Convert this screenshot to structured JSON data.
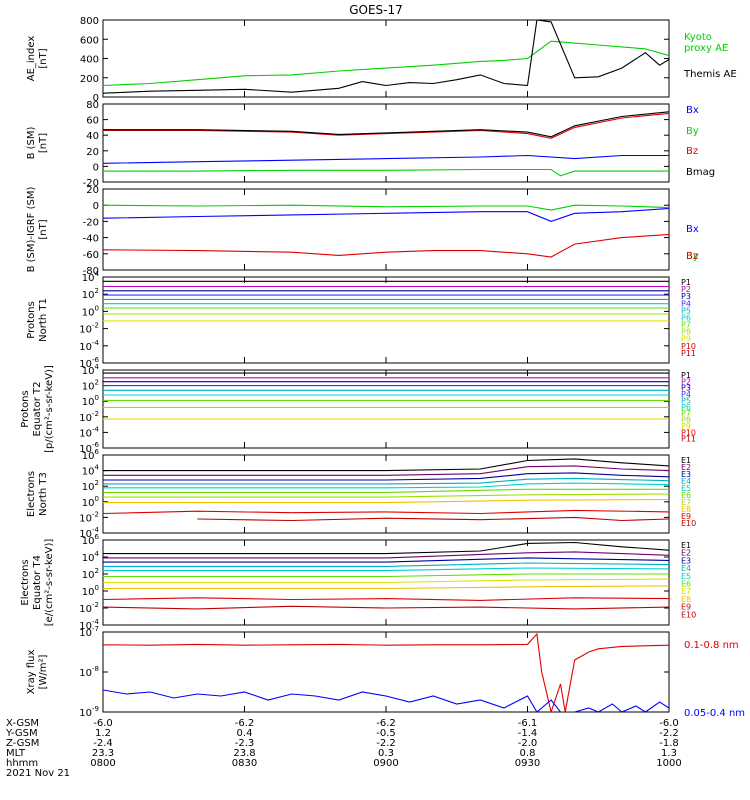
{
  "title": "GOES-17",
  "colors": {
    "axis": "#000000",
    "black": "#000000",
    "green": "#00d000",
    "blue": "#0000ff",
    "red": "#e00000",
    "darkred": "#c00000",
    "magenta": "#c000c0",
    "navy": "#0000a0",
    "cyan": "#00b0c0",
    "aqua": "#00d0d0",
    "lime": "#60e000",
    "yellowgreen": "#a0e000",
    "yellow": "#e0e000",
    "orange": "#f0c000",
    "purple": "#700070",
    "midblue": "#3030ff"
  },
  "chart_data": [
    {
      "id": "ae",
      "type": "line",
      "ylabel": "AE_index\n[nT]",
      "ylim": [
        0,
        800
      ],
      "yticks": [
        "0",
        "200",
        "400",
        "600",
        "800"
      ],
      "xlim": [
        0,
        120
      ],
      "series": [
        {
          "name": "Kyoto\nproxy AE",
          "color": "green",
          "x": [
            0,
            10,
            20,
            30,
            40,
            50,
            60,
            70,
            80,
            85,
            90,
            95,
            100,
            105,
            110,
            115,
            120
          ],
          "y": [
            120,
            140,
            180,
            220,
            230,
            270,
            300,
            330,
            370,
            380,
            400,
            580,
            560,
            540,
            520,
            500,
            430
          ]
        },
        {
          "name": "Themis AE",
          "color": "black",
          "x": [
            0,
            10,
            20,
            30,
            40,
            50,
            55,
            60,
            65,
            70,
            75,
            80,
            85,
            90,
            92,
            95,
            100,
            105,
            110,
            115,
            118,
            120
          ],
          "y": [
            40,
            60,
            70,
            80,
            50,
            90,
            160,
            120,
            150,
            140,
            180,
            230,
            140,
            120,
            800,
            780,
            200,
            210,
            300,
            460,
            330,
            390
          ]
        }
      ]
    },
    {
      "id": "bsm",
      "type": "line",
      "ylabel": "B (SM)\n[nT]",
      "ylim": [
        -20,
        80
      ],
      "yticks": [
        "-20",
        "0",
        "20",
        "40",
        "60",
        "80"
      ],
      "xlim": [
        0,
        120
      ],
      "series": [
        {
          "name": "Bx",
          "color": "blue",
          "x": [
            0,
            20,
            40,
            60,
            80,
            90,
            100,
            110,
            120
          ],
          "y": [
            4,
            6,
            8,
            10,
            12,
            14,
            10,
            14,
            14
          ]
        },
        {
          "name": "By",
          "color": "green",
          "x": [
            0,
            20,
            40,
            60,
            80,
            95,
            97,
            100,
            110,
            120
          ],
          "y": [
            -6,
            -6,
            -5,
            -5,
            -4,
            -4,
            -12,
            -6,
            -6,
            -6
          ]
        },
        {
          "name": "Bz",
          "color": "red",
          "x": [
            0,
            20,
            40,
            50,
            60,
            70,
            80,
            90,
            95,
            100,
            110,
            120
          ],
          "y": [
            46,
            46,
            44,
            40,
            42,
            44,
            46,
            42,
            36,
            50,
            62,
            68
          ]
        },
        {
          "name": "Bmag",
          "color": "black",
          "x": [
            0,
            20,
            40,
            50,
            60,
            70,
            80,
            90,
            95,
            100,
            110,
            120
          ],
          "y": [
            47,
            47,
            45,
            41,
            43,
            45,
            47,
            44,
            38,
            52,
            64,
            70
          ]
        }
      ]
    },
    {
      "id": "bigrf",
      "type": "line",
      "ylabel": "B (SM)-IGRF (SM)\n[nT]",
      "ylim": [
        -80,
        20
      ],
      "yticks": [
        "-80",
        "-60",
        "-40",
        "-20",
        "0",
        "20"
      ],
      "xlim": [
        0,
        120
      ],
      "series": [
        {
          "name": "Bx",
          "color": "blue",
          "x": [
            0,
            20,
            40,
            60,
            80,
            90,
            95,
            100,
            110,
            120
          ],
          "y": [
            -16,
            -14,
            -12,
            -10,
            -8,
            -8,
            -20,
            -10,
            -8,
            -4
          ]
        },
        {
          "name": "By",
          "color": "green",
          "x": [
            0,
            20,
            40,
            60,
            80,
            90,
            95,
            100,
            110,
            120
          ],
          "y": [
            0,
            -1,
            0,
            -2,
            -1,
            -1,
            -6,
            0,
            -1,
            -3
          ]
        },
        {
          "name": "Bz",
          "color": "red",
          "x": [
            0,
            20,
            40,
            50,
            60,
            70,
            80,
            90,
            95,
            100,
            110,
            120
          ],
          "y": [
            -55,
            -56,
            -58,
            -62,
            -58,
            -56,
            -56,
            -60,
            -64,
            -48,
            -40,
            -36
          ]
        }
      ]
    },
    {
      "id": "prot-north",
      "type": "line",
      "scale": "log",
      "ylabel": "Protons\nNorth T1",
      "ylim_exp": [
        -6,
        4
      ],
      "yticks": [
        "10^-6",
        "10^-4",
        "10^-2",
        "10^0",
        "10^2",
        "10^4"
      ],
      "xlim": [
        0,
        120
      ],
      "series": [
        {
          "name": "P1",
          "color": "black",
          "y": 3.5
        },
        {
          "name": "P2",
          "color": "magenta",
          "y": 2.9
        },
        {
          "name": "P3",
          "color": "navy",
          "y": 2.4
        },
        {
          "name": "P4",
          "color": "midblue",
          "y": 1.9
        },
        {
          "name": "P5",
          "color": "cyan",
          "y": 1.4
        },
        {
          "name": "P6",
          "color": "aqua",
          "y": 0.9
        },
        {
          "name": "P7",
          "color": "lime",
          "y": 0.4
        },
        {
          "name": "P8",
          "color": "yellowgreen",
          "y": -0.3
        },
        {
          "name": "P9",
          "color": "yellow",
          "y": -1.1
        }
      ],
      "legend_extra": [
        {
          "name": "P10",
          "color": "red"
        },
        {
          "name": "P11",
          "color": "darkred"
        }
      ]
    },
    {
      "id": "prot-equator",
      "type": "line",
      "scale": "log",
      "ylabel": "Protons\nEquator T2\n[p/(cm²-s-sr-keV)]",
      "ylim_exp": [
        -6,
        4
      ],
      "yticks": [
        "10^-6",
        "10^-4",
        "10^-2",
        "10^0",
        "10^2",
        "10^4"
      ],
      "xlim": [
        0,
        120
      ],
      "series": [
        {
          "name": "P1",
          "color": "black",
          "y": 3.6
        },
        {
          "name": "P2",
          "color": "magenta",
          "y": 3.0
        },
        {
          "name": "P3",
          "color": "navy",
          "y": 2.5
        },
        {
          "name": "P4",
          "color": "midblue",
          "y": 2.0
        },
        {
          "name": "P5",
          "color": "cyan",
          "y": 1.4
        },
        {
          "name": "P6",
          "color": "aqua",
          "y": 0.8
        },
        {
          "name": "P7",
          "color": "lime",
          "y": 0.1
        },
        {
          "name": "P8",
          "color": "yellowgreen",
          "y": -0.8
        },
        {
          "name": "P9",
          "color": "yellow",
          "y": -2.3
        }
      ],
      "legend_extra": [
        {
          "name": "P10",
          "color": "red"
        },
        {
          "name": "P11",
          "color": "darkred"
        }
      ]
    },
    {
      "id": "elec-north",
      "type": "line",
      "scale": "log",
      "ylabel": "Electrons\nNorth T3",
      "ylim_exp": [
        -4,
        6
      ],
      "yticks": [
        "10^-4",
        "10^-2",
        "10^0",
        "10^2",
        "10^4",
        "10^6"
      ],
      "xlim": [
        0,
        120
      ],
      "series": [
        {
          "name": "E1",
          "color": "black",
          "x": [
            0,
            60,
            80,
            90,
            100,
            110,
            120
          ],
          "y": [
            4.0,
            4.0,
            4.2,
            5.3,
            5.5,
            5.0,
            4.6
          ]
        },
        {
          "name": "E2",
          "color": "purple",
          "x": [
            0,
            60,
            80,
            90,
            100,
            110,
            120
          ],
          "y": [
            3.4,
            3.4,
            3.6,
            4.5,
            4.6,
            4.2,
            4.0
          ]
        },
        {
          "name": "E3",
          "color": "navy",
          "x": [
            0,
            60,
            80,
            90,
            100,
            110,
            120
          ],
          "y": [
            2.8,
            2.8,
            3.0,
            3.6,
            3.7,
            3.4,
            3.2
          ]
        },
        {
          "name": "E4",
          "color": "cyan",
          "x": [
            0,
            60,
            80,
            90,
            100,
            120
          ],
          "y": [
            2.3,
            2.3,
            2.4,
            2.9,
            3.0,
            2.7
          ]
        },
        {
          "name": "E5",
          "color": "aqua",
          "x": [
            0,
            60,
            80,
            90,
            100,
            120
          ],
          "y": [
            1.8,
            1.8,
            1.9,
            2.3,
            2.4,
            2.2
          ]
        },
        {
          "name": "E6",
          "color": "lime",
          "x": [
            0,
            60,
            90,
            120
          ],
          "y": [
            1.2,
            1.2,
            1.6,
            1.6
          ]
        },
        {
          "name": "E7",
          "color": "yellowgreen",
          "x": [
            0,
            60,
            90,
            120
          ],
          "y": [
            0.6,
            0.6,
            0.9,
            1.0
          ]
        },
        {
          "name": "E8",
          "color": "orange",
          "x": [
            0,
            60,
            90,
            120
          ],
          "y": [
            -0.1,
            -0.1,
            0.2,
            0.3
          ]
        },
        {
          "name": "E9",
          "color": "red",
          "x": [
            0,
            20,
            40,
            60,
            80,
            100,
            120
          ],
          "y": [
            -1.5,
            -1.2,
            -1.4,
            -1.3,
            -1.5,
            -1.1,
            -1.3
          ]
        },
        {
          "name": "E10",
          "color": "darkred",
          "x": [
            20,
            40,
            60,
            80,
            100,
            110,
            120
          ],
          "y": [
            -2.2,
            -2.4,
            -2.1,
            -2.3,
            -2.0,
            -2.4,
            -2.2
          ]
        }
      ]
    },
    {
      "id": "elec-equator",
      "type": "line",
      "scale": "log",
      "ylabel": "Electrons\nEquator T4\n[e/(cm²-s-sr-keV)]",
      "ylim_exp": [
        -4,
        6
      ],
      "yticks": [
        "10^-4",
        "10^-2",
        "10^0",
        "10^2",
        "10^4",
        "10^6"
      ],
      "xlim": [
        0,
        120
      ],
      "series": [
        {
          "name": "E1",
          "color": "black",
          "x": [
            0,
            60,
            80,
            90,
            100,
            110,
            120
          ],
          "y": [
            4.4,
            4.4,
            4.7,
            5.6,
            5.7,
            5.2,
            4.8
          ]
        },
        {
          "name": "E2",
          "color": "purple",
          "x": [
            0,
            60,
            90,
            100,
            120
          ],
          "y": [
            3.9,
            3.9,
            4.5,
            4.6,
            4.2
          ]
        },
        {
          "name": "E3",
          "color": "navy",
          "x": [
            0,
            60,
            90,
            120
          ],
          "y": [
            3.4,
            3.4,
            3.9,
            3.6
          ]
        },
        {
          "name": "E4",
          "color": "cyan",
          "x": [
            0,
            60,
            90,
            120
          ],
          "y": [
            2.9,
            2.9,
            3.3,
            3.1
          ]
        },
        {
          "name": "E5",
          "color": "aqua",
          "x": [
            0,
            60,
            90,
            120
          ],
          "y": [
            2.4,
            2.4,
            2.7,
            2.6
          ]
        },
        {
          "name": "E6",
          "color": "lime",
          "x": [
            0,
            60,
            90,
            120
          ],
          "y": [
            1.7,
            1.7,
            2.0,
            2.0
          ]
        },
        {
          "name": "E7",
          "color": "yellow",
          "x": [
            0,
            60,
            90,
            120
          ],
          "y": [
            1.0,
            1.0,
            1.3,
            1.4
          ]
        },
        {
          "name": "E8",
          "color": "orange",
          "x": [
            0,
            60,
            90,
            120
          ],
          "y": [
            0.3,
            0.3,
            0.5,
            0.6
          ]
        },
        {
          "name": "E9",
          "color": "red",
          "x": [
            0,
            20,
            40,
            60,
            80,
            100,
            120
          ],
          "y": [
            -1.0,
            -0.8,
            -1.0,
            -0.9,
            -1.1,
            -0.8,
            -0.9
          ]
        },
        {
          "name": "E10",
          "color": "darkred",
          "x": [
            0,
            20,
            40,
            60,
            80,
            100,
            120
          ],
          "y": [
            -1.9,
            -2.1,
            -1.8,
            -2.0,
            -1.9,
            -2.1,
            -1.9
          ]
        }
      ]
    },
    {
      "id": "xray",
      "type": "line",
      "scale": "log",
      "ylabel": "Xray flux\n[W/m²]",
      "ylim_exp": [
        -9,
        -7
      ],
      "yticks": [
        "10^-9",
        "10^-8",
        "10^-7"
      ],
      "xlim": [
        0,
        120
      ],
      "series": [
        {
          "name": "0.1-0.8 nm",
          "color": "red",
          "x": [
            0,
            10,
            20,
            30,
            40,
            50,
            60,
            70,
            80,
            90,
            92,
            93,
            95,
            97,
            98,
            100,
            103,
            105,
            110,
            120
          ],
          "y": [
            -7.32,
            -7.33,
            -7.31,
            -7.33,
            -7.32,
            -7.31,
            -7.33,
            -7.32,
            -7.32,
            -7.31,
            -7.05,
            -8.0,
            -9.0,
            -8.3,
            -9.0,
            -7.7,
            -7.5,
            -7.42,
            -7.36,
            -7.33
          ]
        },
        {
          "name": "0.05-0.4 nm",
          "color": "blue",
          "x": [
            0,
            5,
            10,
            15,
            20,
            25,
            30,
            35,
            40,
            45,
            50,
            55,
            60,
            65,
            70,
            75,
            80,
            85,
            90,
            92,
            95,
            97,
            100,
            103,
            105,
            108,
            110,
            113,
            115,
            118,
            120
          ],
          "y": [
            -8.45,
            -8.55,
            -8.5,
            -8.65,
            -8.55,
            -8.6,
            -8.5,
            -8.7,
            -8.55,
            -8.6,
            -8.7,
            -8.5,
            -8.6,
            -8.75,
            -8.6,
            -8.8,
            -8.7,
            -8.9,
            -8.6,
            -9.0,
            -8.7,
            -9.0,
            -9.0,
            -8.9,
            -9.0,
            -8.8,
            -9.0,
            -8.85,
            -9.0,
            -8.75,
            -8.9
          ]
        }
      ]
    }
  ],
  "ephemeris": {
    "row_labels": [
      "X-GSM",
      "Y-GSM",
      "Z-GSM",
      "MLT",
      "hhmm",
      "2021 Nov 21"
    ],
    "columns": [
      [
        "-6.0",
        "1.2",
        "-2.4",
        "23.3",
        "0800"
      ],
      [
        "-6.2",
        "0.4",
        "-2.3",
        "23.8",
        "0830"
      ],
      [
        "-6.2",
        "-0.5",
        "-2.2",
        "0.3",
        "0900"
      ],
      [
        "-6.1",
        "-1.4",
        "-2.0",
        "0.8",
        "0930"
      ],
      [
        "-6.0",
        "-2.2",
        "-1.8",
        "1.3",
        "1000"
      ]
    ]
  }
}
